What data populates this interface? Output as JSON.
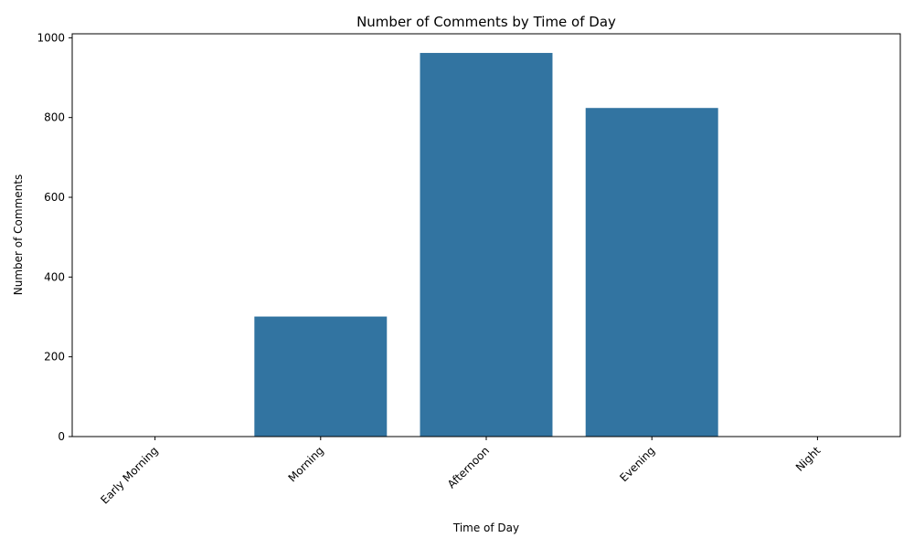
{
  "chart_data": {
    "type": "bar",
    "title": "Number of Comments by Time of Day",
    "xlabel": "Time of Day",
    "ylabel": "Number of Comments",
    "categories": [
      "Early Morning",
      "Morning",
      "Afternoon",
      "Evening",
      "Night"
    ],
    "values": [
      0,
      301,
      962,
      824,
      0
    ],
    "ylim": [
      0,
      1010
    ],
    "yticks": [
      0,
      200,
      400,
      600,
      800,
      1000
    ],
    "grid": false,
    "legend": "none",
    "bar_color": "#3274a1",
    "xtick_rotation": 45
  }
}
